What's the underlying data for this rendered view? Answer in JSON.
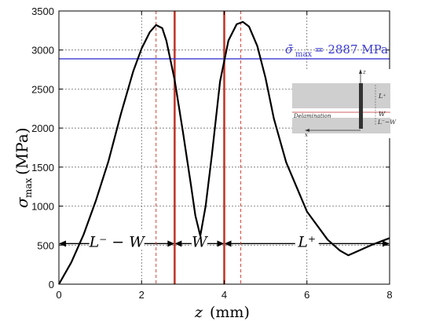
{
  "chart_data": {
    "type": "line",
    "title": "",
    "xlabel_var": "z",
    "xlabel_unit": "(mm)",
    "ylabel_var": "σ",
    "ylabel_sub": "max",
    "ylabel_unit": "(MPa)",
    "xlim": [
      0,
      8
    ],
    "ylim": [
      0,
      3500
    ],
    "xticks": [
      0,
      2,
      4,
      6,
      8
    ],
    "yticks": [
      0,
      500,
      1000,
      1500,
      2000,
      2500,
      3000,
      3500
    ],
    "series": [
      {
        "x": [
          0,
          0.3,
          0.6,
          0.9,
          1.2,
          1.5,
          1.8,
          2.0,
          2.2,
          2.35,
          2.5,
          2.6,
          2.8,
          3.0,
          3.2,
          3.3,
          3.42,
          3.55,
          3.7,
          3.9,
          4.1,
          4.3,
          4.45,
          4.6,
          4.8,
          5.0,
          5.2,
          5.5,
          6.0,
          6.5,
          6.8,
          7.0,
          7.3,
          7.6,
          8.0
        ],
        "y": [
          0,
          280,
          640,
          1080,
          1580,
          2180,
          2730,
          3020,
          3230,
          3320,
          3280,
          3120,
          2620,
          1950,
          1250,
          880,
          620,
          1000,
          1650,
          2600,
          3120,
          3330,
          3360,
          3300,
          3050,
          2640,
          2120,
          1560,
          930,
          570,
          430,
          370,
          440,
          510,
          590
        ],
        "color": "#000000"
      }
    ],
    "hlines": [
      {
        "y": 2887,
        "color": "#3a3ad0",
        "label_sigma": "σ̄",
        "label_sub": "max",
        "label_value": "= 2887 MPa"
      }
    ],
    "vlines_solid": [
      {
        "x": 2.8,
        "color": "#c0392b"
      },
      {
        "x": 4.0,
        "color": "#c0392b"
      }
    ],
    "vlines_dashed": [
      {
        "x": 2.35,
        "color": "#d0453a"
      },
      {
        "x": 4.4,
        "color": "#d0453a"
      }
    ],
    "regions": [
      {
        "x_start": 0,
        "x_end": 2.8,
        "label": "L⁻ − W"
      },
      {
        "x_start": 2.8,
        "x_end": 4.0,
        "label": "W"
      },
      {
        "x_start": 4.0,
        "x_end": 8.0,
        "label": "L⁺"
      }
    ],
    "region_arrow_y": 600,
    "grid": true,
    "inset": {
      "labels": {
        "z": "z",
        "l_plus": "L⁺",
        "w": "W",
        "l_minus_w": "L⁻−W",
        "delamination": "Delamination",
        "x": "x"
      },
      "fill_color": "#cfcfcf",
      "line_color": "#d06060"
    }
  }
}
